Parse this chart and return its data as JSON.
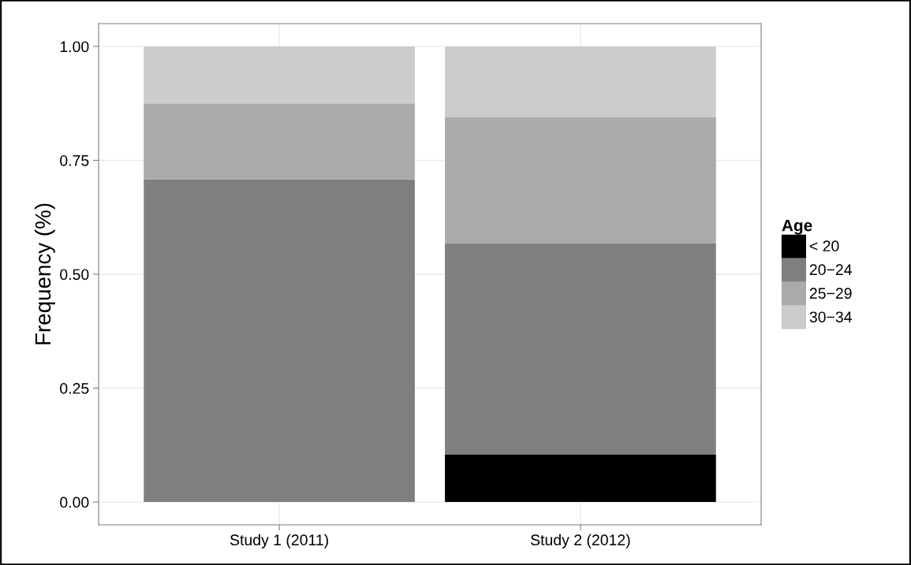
{
  "chart_data": {
    "type": "bar",
    "stacked": true,
    "ylabel": "Frequency (%)",
    "legend_title": "Age",
    "categories": [
      "Study 1 (2011)",
      "Study 2 (2012)"
    ],
    "series": [
      {
        "name": "< 20",
        "color": "#000000",
        "values": [
          0,
          0.104
        ]
      },
      {
        "name": "20−24",
        "color": "#7f7f7f",
        "values": [
          0.708,
          0.464
        ]
      },
      {
        "name": "25−29",
        "color": "#aaaaaa",
        "values": [
          0.167,
          0.276
        ]
      },
      {
        "name": "30−34",
        "color": "#cccccc",
        "values": [
          0.125,
          0.156
        ]
      }
    ],
    "ylim": [
      -0.05,
      1.05
    ],
    "yticks": [
      {
        "value": 0,
        "label": "0.00"
      },
      {
        "value": 0.25,
        "label": "0.25"
      },
      {
        "value": 0.5,
        "label": "0.50"
      },
      {
        "value": 0.75,
        "label": "0.75"
      },
      {
        "value": 1,
        "label": "1.00"
      }
    ],
    "grid": true,
    "legend": "right"
  }
}
